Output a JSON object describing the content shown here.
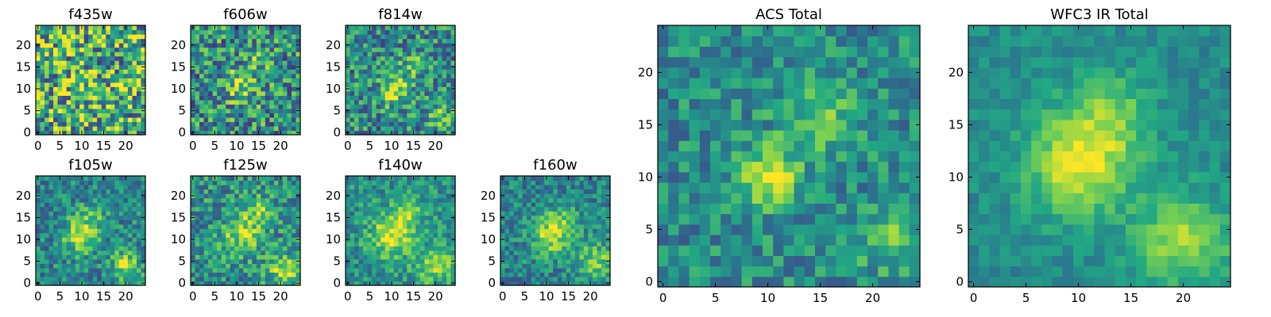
{
  "figure": {
    "colormap": [
      "#440154",
      "#414487",
      "#2a788e",
      "#22a884",
      "#7ad151",
      "#fde725"
    ]
  },
  "chart_data": [
    {
      "type": "heatmap",
      "title": "f435w",
      "grid_size": 25,
      "xlim": [
        -0.5,
        24.5
      ],
      "ylim": [
        -0.5,
        24.5
      ],
      "xticks": [
        0,
        5,
        10,
        15,
        20
      ],
      "yticks": [
        0,
        5,
        10,
        15,
        20
      ],
      "xtick_labels": [
        "0",
        "5",
        "10",
        "15",
        "20"
      ],
      "ytick_labels": [
        "0",
        "5",
        "10",
        "15",
        "20"
      ],
      "peaks": [
        {
          "x": 10,
          "y": 10,
          "amp": 0.12,
          "sigma": 3
        }
      ],
      "noise": 0.45,
      "base": 0.62,
      "seed": 11
    },
    {
      "type": "heatmap",
      "title": "f606w",
      "grid_size": 25,
      "xlim": [
        -0.5,
        24.5
      ],
      "ylim": [
        -0.5,
        24.5
      ],
      "xticks": [
        0,
        5,
        10,
        15,
        20
      ],
      "yticks": [
        0,
        5,
        10,
        15,
        20
      ],
      "xtick_labels": [
        "0",
        "5",
        "10",
        "15",
        "20"
      ],
      "ytick_labels": [
        "0",
        "5",
        "10",
        "15",
        "20"
      ],
      "peaks": [
        {
          "x": 11,
          "y": 11,
          "amp": 0.35,
          "sigma": 2.5
        },
        {
          "x": 16,
          "y": 17,
          "amp": 0.2,
          "sigma": 2
        }
      ],
      "noise": 0.35,
      "base": 0.5,
      "seed": 23
    },
    {
      "type": "heatmap",
      "title": "f814w",
      "grid_size": 25,
      "xlim": [
        -0.5,
        24.5
      ],
      "ylim": [
        -0.5,
        24.5
      ],
      "xticks": [
        0,
        5,
        10,
        15,
        20
      ],
      "yticks": [
        0,
        5,
        10,
        15,
        20
      ],
      "xtick_labels": [
        "0",
        "5",
        "10",
        "15",
        "20"
      ],
      "ytick_labels": [
        "0",
        "5",
        "10",
        "15",
        "20"
      ],
      "peaks": [
        {
          "x": 11,
          "y": 10,
          "amp": 0.4,
          "sigma": 2.5
        },
        {
          "x": 15,
          "y": 16,
          "amp": 0.2,
          "sigma": 2
        },
        {
          "x": 21,
          "y": 4,
          "amp": 0.25,
          "sigma": 2
        }
      ],
      "noise": 0.3,
      "base": 0.48,
      "seed": 37
    },
    {
      "type": "heatmap",
      "title": "f105w",
      "grid_size": 25,
      "xlim": [
        -0.5,
        24.5
      ],
      "ylim": [
        -0.5,
        24.5
      ],
      "xticks": [
        0,
        5,
        10,
        15,
        20
      ],
      "yticks": [
        0,
        5,
        10,
        15,
        20
      ],
      "xtick_labels": [
        "0",
        "5",
        "10",
        "15",
        "20"
      ],
      "ytick_labels": [
        "0",
        "5",
        "10",
        "15",
        "20"
      ],
      "peaks": [
        {
          "x": 10,
          "y": 11,
          "amp": 0.45,
          "sigma": 3
        },
        {
          "x": 20,
          "y": 4,
          "amp": 0.4,
          "sigma": 2.5
        },
        {
          "x": 13,
          "y": 16,
          "amp": 0.2,
          "sigma": 2
        }
      ],
      "noise": 0.22,
      "base": 0.45,
      "seed": 51
    },
    {
      "type": "heatmap",
      "title": "f125w",
      "grid_size": 25,
      "xlim": [
        -0.5,
        24.5
      ],
      "ylim": [
        -0.5,
        24.5
      ],
      "xticks": [
        0,
        5,
        10,
        15,
        20
      ],
      "yticks": [
        0,
        5,
        10,
        15,
        20
      ],
      "xtick_labels": [
        "0",
        "5",
        "10",
        "15",
        "20"
      ],
      "ytick_labels": [
        "0",
        "5",
        "10",
        "15",
        "20"
      ],
      "peaks": [
        {
          "x": 11,
          "y": 11,
          "amp": 0.35,
          "sigma": 3
        },
        {
          "x": 21,
          "y": 3,
          "amp": 0.4,
          "sigma": 2.5
        },
        {
          "x": 15,
          "y": 16,
          "amp": 0.3,
          "sigma": 2.5
        }
      ],
      "noise": 0.25,
      "base": 0.5,
      "seed": 67
    },
    {
      "type": "heatmap",
      "title": "f140w",
      "grid_size": 25,
      "xlim": [
        -0.5,
        24.5
      ],
      "ylim": [
        -0.5,
        24.5
      ],
      "xticks": [
        0,
        5,
        10,
        15,
        20
      ],
      "yticks": [
        0,
        5,
        10,
        15,
        20
      ],
      "xtick_labels": [
        "0",
        "5",
        "10",
        "15",
        "20"
      ],
      "ytick_labels": [
        "0",
        "5",
        "10",
        "15",
        "20"
      ],
      "peaks": [
        {
          "x": 10,
          "y": 11,
          "amp": 0.45,
          "sigma": 3.5
        },
        {
          "x": 20,
          "y": 4,
          "amp": 0.35,
          "sigma": 3
        },
        {
          "x": 14,
          "y": 16,
          "amp": 0.25,
          "sigma": 2.5
        }
      ],
      "noise": 0.2,
      "base": 0.5,
      "seed": 79
    },
    {
      "type": "heatmap",
      "title": "f160w",
      "grid_size": 25,
      "xlim": [
        -0.5,
        24.5
      ],
      "ylim": [
        -0.5,
        24.5
      ],
      "xticks": [
        0,
        5,
        10,
        15,
        20
      ],
      "yticks": [
        0,
        5,
        10,
        15,
        20
      ],
      "xtick_labels": [
        "0",
        "5",
        "10",
        "15",
        "20"
      ],
      "ytick_labels": [
        "0",
        "5",
        "10",
        "15",
        "20"
      ],
      "peaks": [
        {
          "x": 11,
          "y": 11,
          "amp": 0.45,
          "sigma": 3
        },
        {
          "x": 21,
          "y": 5,
          "amp": 0.35,
          "sigma": 3
        },
        {
          "x": 14,
          "y": 15,
          "amp": 0.2,
          "sigma": 2.5
        }
      ],
      "noise": 0.2,
      "base": 0.45,
      "seed": 97
    },
    {
      "type": "heatmap",
      "title": "ACS Total",
      "grid_size": 25,
      "xlim": [
        -0.5,
        24.5
      ],
      "ylim": [
        -0.5,
        24.5
      ],
      "xticks": [
        0,
        5,
        10,
        15,
        20
      ],
      "yticks": [
        0,
        5,
        10,
        15,
        20
      ],
      "xtick_labels": [
        "0",
        "5",
        "10",
        "15",
        "20"
      ],
      "ytick_labels": [
        "0",
        "5",
        "10",
        "15",
        "20"
      ],
      "peaks": [
        {
          "x": 10,
          "y": 10,
          "amp": 0.5,
          "sigma": 2
        },
        {
          "x": 15,
          "y": 16,
          "amp": 0.25,
          "sigma": 2.5
        },
        {
          "x": 21,
          "y": 4,
          "amp": 0.25,
          "sigma": 2
        }
      ],
      "noise": 0.2,
      "base": 0.48,
      "seed": 113
    },
    {
      "type": "heatmap",
      "title": "WFC3 IR Total",
      "grid_size": 25,
      "xlim": [
        -0.5,
        24.5
      ],
      "ylim": [
        -0.5,
        24.5
      ],
      "xticks": [
        0,
        5,
        10,
        15,
        20
      ],
      "yticks": [
        0,
        5,
        10,
        15,
        20
      ],
      "xtick_labels": [
        "0",
        "5",
        "10",
        "15",
        "20"
      ],
      "ytick_labels": [
        "0",
        "5",
        "10",
        "15",
        "20"
      ],
      "peaks": [
        {
          "x": 10,
          "y": 11,
          "amp": 0.45,
          "sigma": 3.5
        },
        {
          "x": 20,
          "y": 4,
          "amp": 0.4,
          "sigma": 3
        },
        {
          "x": 13,
          "y": 16,
          "amp": 0.25,
          "sigma": 3
        }
      ],
      "noise": 0.1,
      "base": 0.48,
      "seed": 131
    }
  ]
}
